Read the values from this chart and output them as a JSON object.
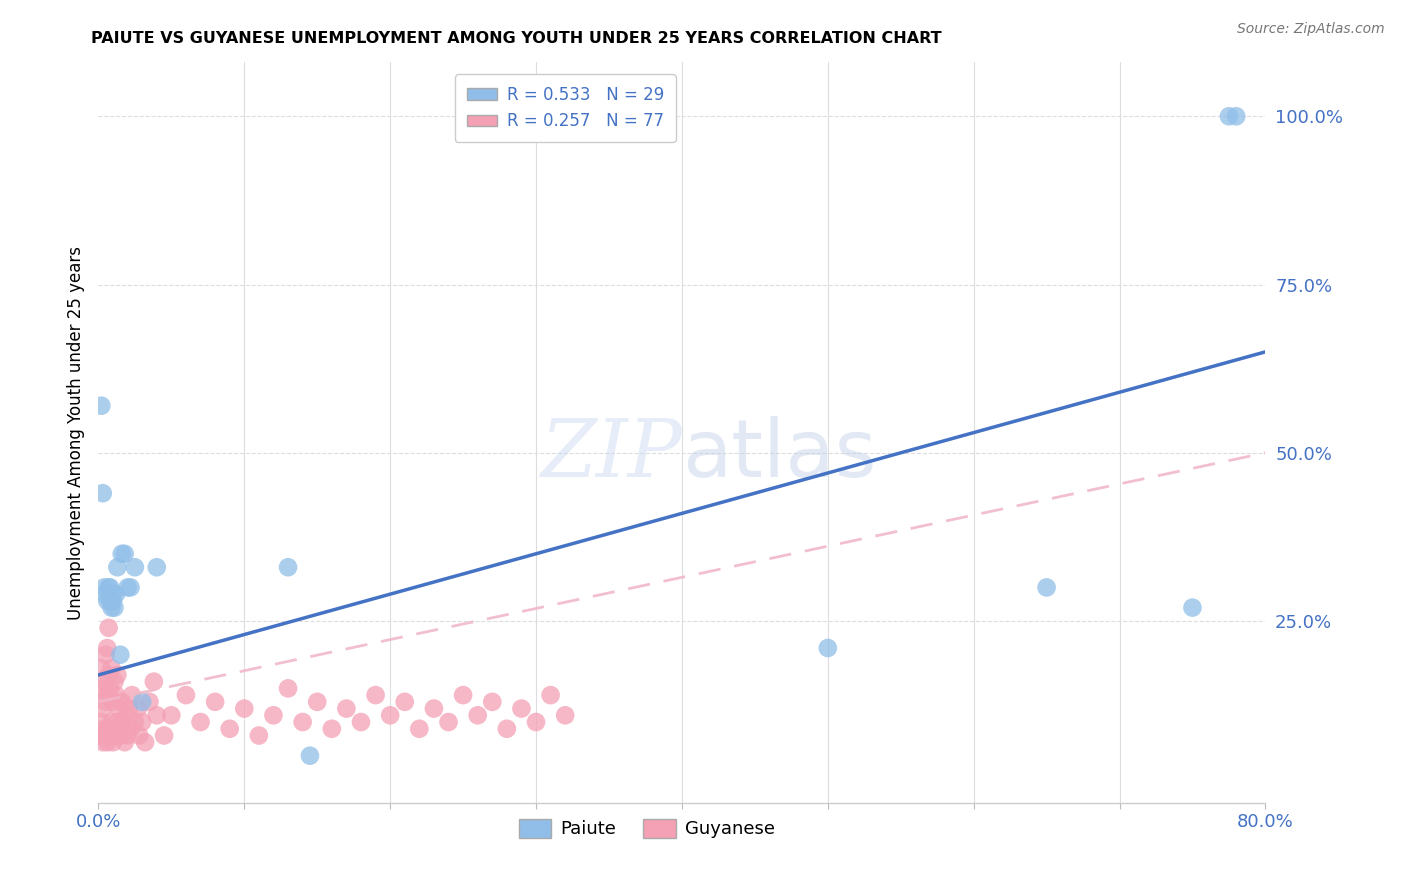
{
  "title": "PAIUTE VS GUYANESE UNEMPLOYMENT AMONG YOUTH UNDER 25 YEARS CORRELATION CHART",
  "source": "Source: ZipAtlas.com",
  "ylabel": "Unemployment Among Youth under 25 years",
  "ytick_labels": [
    "100.0%",
    "75.0%",
    "50.0%",
    "25.0%"
  ],
  "ytick_values": [
    1.0,
    0.75,
    0.5,
    0.25
  ],
  "watermark": "ZIPatlas",
  "paiute_color": "#90BEE8",
  "guyanese_color": "#F4A0B5",
  "paiute_line_color": "#4472C4",
  "guyanese_line_color": "#F0B8C8",
  "axis_label_color": "#4472C4",
  "paiute_x": [
    0.002,
    0.003,
    0.004,
    0.005,
    0.006,
    0.007,
    0.008,
    0.008,
    0.009,
    0.01,
    0.01,
    0.011,
    0.012,
    0.013,
    0.015,
    0.016,
    0.018,
    0.02,
    0.022,
    0.025,
    0.03,
    0.04,
    0.13,
    0.145,
    0.5,
    0.65,
    0.75,
    0.775,
    0.78
  ],
  "paiute_y": [
    0.57,
    0.44,
    0.3,
    0.29,
    0.28,
    0.3,
    0.28,
    0.3,
    0.27,
    0.28,
    0.29,
    0.27,
    0.29,
    0.33,
    0.2,
    0.35,
    0.35,
    0.3,
    0.3,
    0.33,
    0.13,
    0.33,
    0.33,
    0.05,
    0.21,
    0.3,
    0.27,
    1.0,
    1.0
  ],
  "guyanese_x": [
    0.001,
    0.001,
    0.002,
    0.002,
    0.003,
    0.003,
    0.004,
    0.004,
    0.005,
    0.005,
    0.005,
    0.006,
    0.006,
    0.006,
    0.007,
    0.007,
    0.007,
    0.008,
    0.008,
    0.009,
    0.009,
    0.01,
    0.01,
    0.011,
    0.011,
    0.012,
    0.012,
    0.013,
    0.013,
    0.014,
    0.015,
    0.016,
    0.017,
    0.018,
    0.019,
    0.02,
    0.021,
    0.022,
    0.023,
    0.025,
    0.027,
    0.028,
    0.03,
    0.032,
    0.035,
    0.038,
    0.04,
    0.045,
    0.05,
    0.06,
    0.07,
    0.08,
    0.09,
    0.1,
    0.11,
    0.12,
    0.13,
    0.14,
    0.15,
    0.16,
    0.17,
    0.18,
    0.19,
    0.2,
    0.21,
    0.22,
    0.23,
    0.24,
    0.25,
    0.26,
    0.27,
    0.28,
    0.29,
    0.3,
    0.31,
    0.32
  ],
  "guyanese_y": [
    0.08,
    0.15,
    0.1,
    0.18,
    0.07,
    0.12,
    0.09,
    0.16,
    0.08,
    0.13,
    0.2,
    0.07,
    0.14,
    0.21,
    0.09,
    0.17,
    0.24,
    0.08,
    0.15,
    0.1,
    0.18,
    0.07,
    0.13,
    0.09,
    0.16,
    0.08,
    0.14,
    0.1,
    0.17,
    0.12,
    0.08,
    0.13,
    0.1,
    0.07,
    0.11,
    0.08,
    0.12,
    0.09,
    0.14,
    0.1,
    0.12,
    0.08,
    0.1,
    0.07,
    0.13,
    0.16,
    0.11,
    0.08,
    0.11,
    0.14,
    0.1,
    0.13,
    0.09,
    0.12,
    0.08,
    0.11,
    0.15,
    0.1,
    0.13,
    0.09,
    0.12,
    0.1,
    0.14,
    0.11,
    0.13,
    0.09,
    0.12,
    0.1,
    0.14,
    0.11,
    0.13,
    0.09,
    0.12,
    0.1,
    0.14,
    0.11
  ],
  "paiute_trendline_x": [
    0.0,
    0.8
  ],
  "paiute_trendline_y": [
    0.17,
    0.65
  ],
  "guyanese_trendline_x": [
    0.0,
    0.8
  ],
  "guyanese_trendline_y": [
    0.13,
    0.5
  ],
  "xlim": [
    0,
    0.8
  ],
  "ylim": [
    -0.02,
    1.08
  ],
  "figsize": [
    14.06,
    8.92
  ],
  "dpi": 100
}
